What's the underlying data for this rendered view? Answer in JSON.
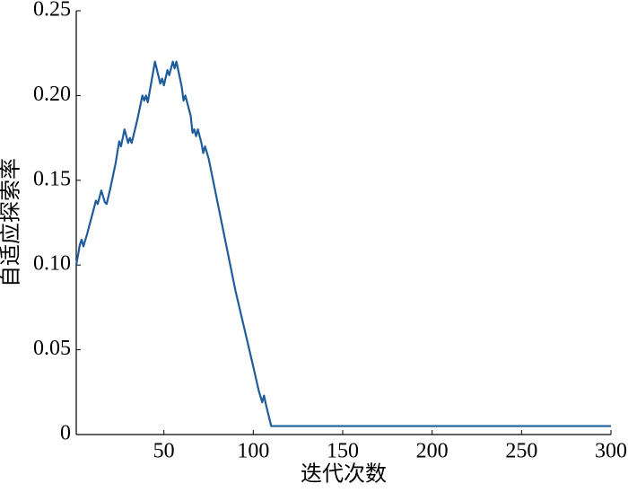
{
  "chart_data": {
    "type": "line",
    "xlabel": "迭代次数",
    "ylabel": "自适应探索率",
    "x": [
      1,
      3,
      4,
      5,
      7,
      10,
      12,
      13,
      15,
      17,
      18,
      20,
      23,
      25,
      26,
      28,
      30,
      31,
      32,
      35,
      38,
      39,
      40,
      41,
      45,
      48,
      49,
      50,
      52,
      53,
      55,
      56,
      57,
      60,
      61,
      62,
      65,
      66,
      67,
      68,
      69,
      71,
      72,
      73,
      75,
      80,
      90,
      100,
      103,
      105,
      106,
      107,
      110,
      300
    ],
    "series": [
      {
        "color": "#1f5c9c",
        "values": [
          0.1,
          0.112,
          0.115,
          0.111,
          0.118,
          0.13,
          0.138,
          0.136,
          0.144,
          0.137,
          0.136,
          0.145,
          0.16,
          0.173,
          0.17,
          0.18,
          0.172,
          0.175,
          0.172,
          0.185,
          0.2,
          0.197,
          0.2,
          0.196,
          0.22,
          0.207,
          0.21,
          0.206,
          0.215,
          0.212,
          0.22,
          0.216,
          0.22,
          0.205,
          0.197,
          0.2,
          0.188,
          0.178,
          0.18,
          0.176,
          0.18,
          0.172,
          0.166,
          0.17,
          0.163,
          0.137,
          0.085,
          0.04,
          0.026,
          0.019,
          0.023,
          0.018,
          0.005,
          0.005
        ]
      }
    ],
    "xlim": [
      1,
      300
    ],
    "ylim": [
      0,
      0.25
    ],
    "xticks": [
      50,
      100,
      150,
      200,
      250,
      300
    ],
    "yticks": [
      0,
      0.05,
      {
        "value": 0.1,
        "label": "0.10"
      },
      0.15,
      {
        "value": 0.2,
        "label": "0.20"
      },
      0.25
    ]
  }
}
